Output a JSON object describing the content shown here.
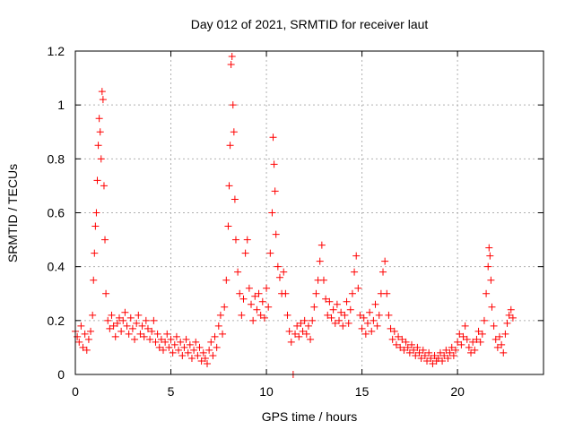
{
  "chart_data": {
    "type": "scatter",
    "title": "Day 012 of 2021, SRMTID for receiver laut",
    "xlabel": "GPS time / hours",
    "ylabel": "SRMTID / TECUs",
    "xlim": [
      0,
      24.5
    ],
    "ylim": [
      0,
      1.2
    ],
    "x_ticks": [
      0,
      5,
      10,
      15,
      20
    ],
    "x_tick_labels": [
      "0",
      "5",
      "10",
      "15",
      "20"
    ],
    "y_ticks": [
      0,
      0.2,
      0.4,
      0.6,
      0.8,
      1.0,
      1.2
    ],
    "y_tick_labels": [
      "0",
      "0.2",
      "0.4",
      "0.6",
      "0.8",
      "1",
      "1.2"
    ],
    "grid": true,
    "marker": "+",
    "color": "#ff0000",
    "series": [
      {
        "name": "SRMTID",
        "points": [
          [
            0.0,
            0.16
          ],
          [
            0.1,
            0.14
          ],
          [
            0.2,
            0.12
          ],
          [
            0.3,
            0.18
          ],
          [
            0.4,
            0.1
          ],
          [
            0.5,
            0.15
          ],
          [
            0.6,
            0.09
          ],
          [
            0.7,
            0.13
          ],
          [
            0.8,
            0.16
          ],
          [
            0.9,
            0.22
          ],
          [
            0.95,
            0.35
          ],
          [
            1.0,
            0.45
          ],
          [
            1.05,
            0.55
          ],
          [
            1.1,
            0.6
          ],
          [
            1.15,
            0.72
          ],
          [
            1.2,
            0.85
          ],
          [
            1.25,
            0.95
          ],
          [
            1.3,
            0.9
          ],
          [
            1.35,
            0.8
          ],
          [
            1.4,
            1.05
          ],
          [
            1.45,
            1.02
          ],
          [
            1.5,
            0.7
          ],
          [
            1.55,
            0.5
          ],
          [
            1.6,
            0.3
          ],
          [
            1.7,
            0.2
          ],
          [
            1.8,
            0.17
          ],
          [
            1.9,
            0.22
          ],
          [
            2.0,
            0.18
          ],
          [
            2.1,
            0.14
          ],
          [
            2.2,
            0.19
          ],
          [
            2.3,
            0.21
          ],
          [
            2.4,
            0.16
          ],
          [
            2.5,
            0.2
          ],
          [
            2.6,
            0.23
          ],
          [
            2.7,
            0.18
          ],
          [
            2.8,
            0.15
          ],
          [
            2.9,
            0.21
          ],
          [
            3.0,
            0.17
          ],
          [
            3.1,
            0.13
          ],
          [
            3.2,
            0.19
          ],
          [
            3.3,
            0.22
          ],
          [
            3.4,
            0.15
          ],
          [
            3.5,
            0.18
          ],
          [
            3.6,
            0.14
          ],
          [
            3.7,
            0.2
          ],
          [
            3.8,
            0.17
          ],
          [
            3.9,
            0.13
          ],
          [
            4.0,
            0.16
          ],
          [
            4.1,
            0.2
          ],
          [
            4.2,
            0.12
          ],
          [
            4.3,
            0.15
          ],
          [
            4.4,
            0.1
          ],
          [
            4.5,
            0.13
          ],
          [
            4.6,
            0.09
          ],
          [
            4.7,
            0.12
          ],
          [
            4.8,
            0.15
          ],
          [
            4.9,
            0.1
          ],
          [
            5.0,
            0.13
          ],
          [
            5.1,
            0.08
          ],
          [
            5.2,
            0.11
          ],
          [
            5.3,
            0.14
          ],
          [
            5.4,
            0.09
          ],
          [
            5.5,
            0.12
          ],
          [
            5.6,
            0.07
          ],
          [
            5.7,
            0.1
          ],
          [
            5.8,
            0.13
          ],
          [
            5.9,
            0.08
          ],
          [
            6.0,
            0.11
          ],
          [
            6.1,
            0.06
          ],
          [
            6.2,
            0.09
          ],
          [
            6.3,
            0.12
          ],
          [
            6.4,
            0.07
          ],
          [
            6.5,
            0.1
          ],
          [
            6.6,
            0.05
          ],
          [
            6.7,
            0.08
          ],
          [
            6.8,
            0.06
          ],
          [
            6.9,
            0.04
          ],
          [
            7.0,
            0.09
          ],
          [
            7.1,
            0.12
          ],
          [
            7.2,
            0.07
          ],
          [
            7.3,
            0.14
          ],
          [
            7.4,
            0.1
          ],
          [
            7.5,
            0.18
          ],
          [
            7.6,
            0.22
          ],
          [
            7.7,
            0.15
          ],
          [
            7.8,
            0.25
          ],
          [
            7.9,
            0.35
          ],
          [
            8.0,
            0.55
          ],
          [
            8.05,
            0.7
          ],
          [
            8.1,
            0.85
          ],
          [
            8.15,
            1.15
          ],
          [
            8.2,
            1.18
          ],
          [
            8.25,
            1.0
          ],
          [
            8.3,
            0.9
          ],
          [
            8.35,
            0.65
          ],
          [
            8.4,
            0.5
          ],
          [
            8.5,
            0.38
          ],
          [
            8.6,
            0.3
          ],
          [
            8.7,
            0.22
          ],
          [
            8.8,
            0.28
          ],
          [
            8.9,
            0.45
          ],
          [
            9.0,
            0.5
          ],
          [
            9.1,
            0.32
          ],
          [
            9.2,
            0.26
          ],
          [
            9.3,
            0.2
          ],
          [
            9.4,
            0.29
          ],
          [
            9.5,
            0.24
          ],
          [
            9.6,
            0.3
          ],
          [
            9.7,
            0.22
          ],
          [
            9.8,
            0.27
          ],
          [
            9.9,
            0.21
          ],
          [
            10.0,
            0.32
          ],
          [
            10.1,
            0.25
          ],
          [
            10.2,
            0.45
          ],
          [
            10.3,
            0.6
          ],
          [
            10.35,
            0.88
          ],
          [
            10.4,
            0.78
          ],
          [
            10.45,
            0.68
          ],
          [
            10.5,
            0.52
          ],
          [
            10.6,
            0.4
          ],
          [
            10.7,
            0.36
          ],
          [
            10.8,
            0.3
          ],
          [
            10.9,
            0.38
          ],
          [
            11.0,
            0.3
          ],
          [
            11.1,
            0.22
          ],
          [
            11.2,
            0.16
          ],
          [
            11.3,
            0.12
          ],
          [
            11.4,
            0.0
          ],
          [
            11.5,
            0.15
          ],
          [
            11.6,
            0.18
          ],
          [
            11.7,
            0.14
          ],
          [
            11.8,
            0.19
          ],
          [
            11.9,
            0.16
          ],
          [
            12.0,
            0.2
          ],
          [
            12.1,
            0.15
          ],
          [
            12.2,
            0.18
          ],
          [
            12.3,
            0.13
          ],
          [
            12.4,
            0.2
          ],
          [
            12.5,
            0.25
          ],
          [
            12.6,
            0.3
          ],
          [
            12.7,
            0.35
          ],
          [
            12.8,
            0.42
          ],
          [
            12.9,
            0.48
          ],
          [
            13.0,
            0.35
          ],
          [
            13.1,
            0.28
          ],
          [
            13.2,
            0.22
          ],
          [
            13.3,
            0.27
          ],
          [
            13.4,
            0.21
          ],
          [
            13.5,
            0.24
          ],
          [
            13.6,
            0.19
          ],
          [
            13.7,
            0.26
          ],
          [
            13.8,
            0.2
          ],
          [
            13.9,
            0.23
          ],
          [
            14.0,
            0.18
          ],
          [
            14.1,
            0.22
          ],
          [
            14.2,
            0.27
          ],
          [
            14.3,
            0.19
          ],
          [
            14.4,
            0.24
          ],
          [
            14.5,
            0.3
          ],
          [
            14.6,
            0.38
          ],
          [
            14.7,
            0.44
          ],
          [
            14.8,
            0.32
          ],
          [
            14.9,
            0.22
          ],
          [
            15.0,
            0.17
          ],
          [
            15.1,
            0.21
          ],
          [
            15.2,
            0.15
          ],
          [
            15.3,
            0.19
          ],
          [
            15.4,
            0.23
          ],
          [
            15.5,
            0.16
          ],
          [
            15.6,
            0.2
          ],
          [
            15.7,
            0.26
          ],
          [
            15.8,
            0.18
          ],
          [
            15.9,
            0.22
          ],
          [
            16.0,
            0.3
          ],
          [
            16.1,
            0.38
          ],
          [
            16.2,
            0.42
          ],
          [
            16.3,
            0.3
          ],
          [
            16.4,
            0.22
          ],
          [
            16.5,
            0.17
          ],
          [
            16.6,
            0.13
          ],
          [
            16.7,
            0.16
          ],
          [
            16.8,
            0.11
          ],
          [
            16.9,
            0.14
          ],
          [
            17.0,
            0.1
          ],
          [
            17.1,
            0.13
          ],
          [
            17.2,
            0.09
          ],
          [
            17.3,
            0.12
          ],
          [
            17.4,
            0.1
          ],
          [
            17.5,
            0.08
          ],
          [
            17.6,
            0.11
          ],
          [
            17.7,
            0.09
          ],
          [
            17.8,
            0.07
          ],
          [
            17.9,
            0.1
          ],
          [
            18.0,
            0.08
          ],
          [
            18.1,
            0.06
          ],
          [
            18.2,
            0.09
          ],
          [
            18.3,
            0.07
          ],
          [
            18.4,
            0.05
          ],
          [
            18.5,
            0.08
          ],
          [
            18.6,
            0.06
          ],
          [
            18.7,
            0.04
          ],
          [
            18.8,
            0.07
          ],
          [
            18.9,
            0.05
          ],
          [
            19.0,
            0.06
          ],
          [
            19.1,
            0.08
          ],
          [
            19.2,
            0.05
          ],
          [
            19.3,
            0.07
          ],
          [
            19.4,
            0.09
          ],
          [
            19.5,
            0.06
          ],
          [
            19.6,
            0.08
          ],
          [
            19.7,
            0.1
          ],
          [
            19.8,
            0.07
          ],
          [
            19.9,
            0.09
          ],
          [
            20.0,
            0.12
          ],
          [
            20.1,
            0.15
          ],
          [
            20.2,
            0.11
          ],
          [
            20.3,
            0.14
          ],
          [
            20.4,
            0.18
          ],
          [
            20.5,
            0.13
          ],
          [
            20.6,
            0.1
          ],
          [
            20.7,
            0.08
          ],
          [
            20.8,
            0.12
          ],
          [
            20.9,
            0.09
          ],
          [
            21.0,
            0.13
          ],
          [
            21.1,
            0.16
          ],
          [
            21.2,
            0.12
          ],
          [
            21.3,
            0.15
          ],
          [
            21.4,
            0.2
          ],
          [
            21.5,
            0.3
          ],
          [
            21.6,
            0.4
          ],
          [
            21.65,
            0.47
          ],
          [
            21.7,
            0.44
          ],
          [
            21.75,
            0.35
          ],
          [
            21.8,
            0.25
          ],
          [
            21.9,
            0.18
          ],
          [
            22.0,
            0.13
          ],
          [
            22.1,
            0.1
          ],
          [
            22.2,
            0.14
          ],
          [
            22.3,
            0.11
          ],
          [
            22.4,
            0.08
          ],
          [
            22.5,
            0.15
          ],
          [
            22.6,
            0.19
          ],
          [
            22.7,
            0.22
          ],
          [
            22.8,
            0.24
          ],
          [
            22.9,
            0.21
          ]
        ]
      }
    ]
  }
}
